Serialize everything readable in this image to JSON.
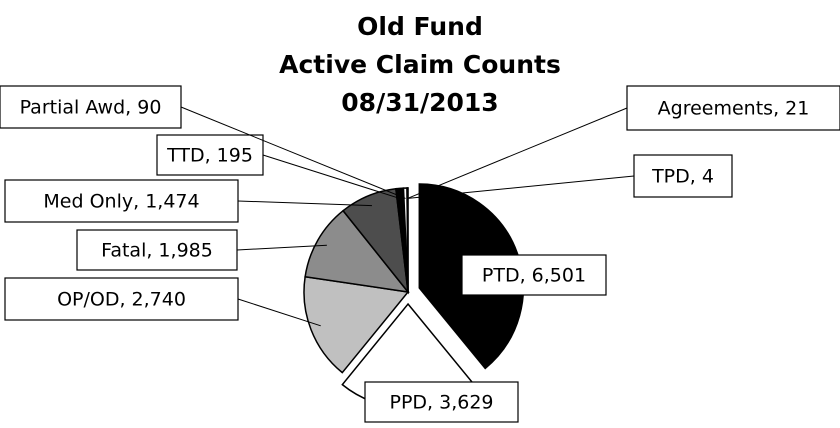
{
  "chart_data": {
    "type": "pie",
    "title": [
      "Old Fund",
      "Active Claim Counts",
      "08/31/2013"
    ],
    "values": [
      6501,
      3629,
      2740,
      1985,
      1474,
      195,
      90,
      21,
      4
    ],
    "value_labels": [
      "PTD, 6,501",
      "PPD, 3,629",
      "OP/OD, 2,740",
      "Fatal, 1,985",
      "Med Only, 1,474",
      "TTD, 195",
      "Partial Awd, 90",
      "Agreements, 21",
      "TPD, 4"
    ],
    "colors": [
      "#000000",
      "#ffffff",
      "#c0c0c0",
      "#8c8c8c",
      "#4d4d4d",
      "#000000",
      "#ffffff",
      "#000000",
      "#ffffff"
    ]
  }
}
